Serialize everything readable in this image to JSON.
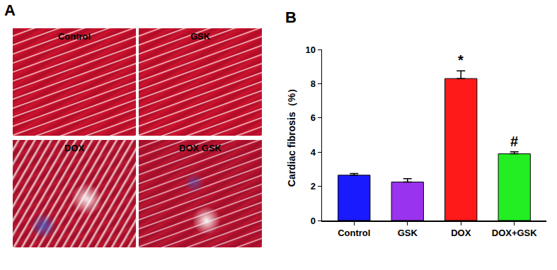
{
  "panel_labels": [
    "A",
    "B"
  ],
  "micrographs": [
    {
      "label": "Control"
    },
    {
      "label": "GSK"
    },
    {
      "label": "DOX"
    },
    {
      "label": "DOX GSK"
    }
  ],
  "chart_data": {
    "type": "bar",
    "ylabel": "Cardiac fibrosis（%）",
    "categories": [
      "Control",
      "GSK",
      "DOX",
      "DOX+GSK"
    ],
    "values": [
      2.65,
      2.25,
      8.3,
      3.9
    ],
    "error": [
      0.1,
      0.2,
      0.45,
      0.12
    ],
    "colors": [
      "#1a1aff",
      "#9933ee",
      "#ff1a1a",
      "#22ee22"
    ],
    "ylim": [
      0,
      10
    ],
    "yticks": [
      0,
      2,
      4,
      6,
      8,
      10
    ],
    "grid": false,
    "annotations": [
      {
        "category": "DOX",
        "text": "*"
      },
      {
        "category": "DOX+GSK",
        "text": "#"
      }
    ]
  }
}
